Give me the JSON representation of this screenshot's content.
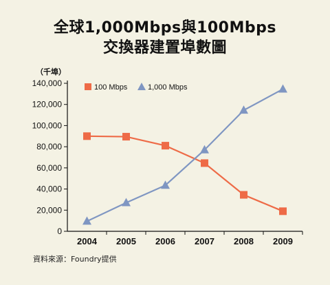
{
  "title_line1": "全球1,000Mbps與100Mbps",
  "title_line2": "交換器建置埠數圖",
  "source": "資料來源：Foundry提供",
  "chart_data": {
    "type": "line",
    "title": "全球1,000Mbps與100Mbps 交換器建置埠數圖",
    "ylabel": "（千埠）",
    "xlabel": "",
    "x": [
      "2004",
      "2005",
      "2006",
      "2007",
      "2008",
      "2009"
    ],
    "ylim": [
      0,
      140000
    ],
    "yticks": [
      0,
      20000,
      40000,
      60000,
      80000,
      100000,
      120000,
      140000
    ],
    "ytick_labels": [
      "0",
      "20,000",
      "40,000",
      "60,000",
      "80,000",
      "100,000",
      "120,000",
      "140,000"
    ],
    "grid": false,
    "legend_position": "top-left",
    "series": [
      {
        "name": "100 Mbps",
        "marker": "square",
        "color": "#ee6b47",
        "values": [
          90000,
          89500,
          81000,
          64500,
          34500,
          19000
        ]
      },
      {
        "name": "1,000 Mbps",
        "marker": "triangle",
        "color": "#7f96c2",
        "values": [
          9500,
          27000,
          43500,
          77000,
          114500,
          134500
        ]
      }
    ]
  }
}
